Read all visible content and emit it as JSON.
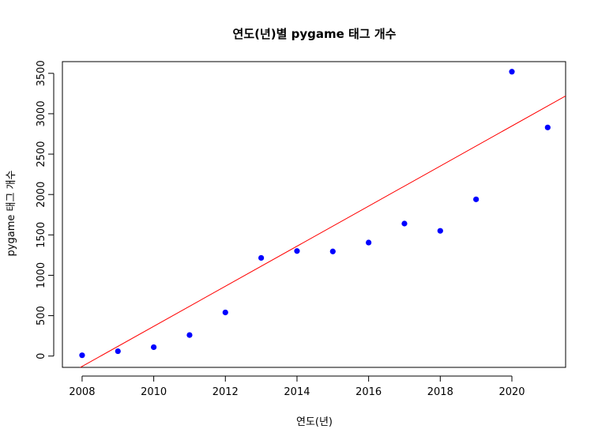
{
  "chart_data": {
    "type": "scatter",
    "title": "연도(년)별 pygame 태그 개수",
    "xlabel": "연도(년)",
    "ylabel": "pygame 태그 개수",
    "xlim": [
      2007.45,
      2021.5
    ],
    "ylim": [
      -140,
      3645
    ],
    "xticks": [
      2008,
      2010,
      2012,
      2014,
      2016,
      2018,
      2020
    ],
    "yticks": [
      0,
      500,
      1000,
      1500,
      2000,
      2500,
      3000,
      3500
    ],
    "grid": false,
    "series": [
      {
        "x": [
          2008,
          2009,
          2010,
          2011,
          2012,
          2013,
          2014,
          2015,
          2016,
          2017,
          2018,
          2019,
          2020,
          2021
        ],
        "y": [
          10,
          60,
          110,
          260,
          540,
          1215,
          1300,
          1295,
          1405,
          1640,
          1550,
          1940,
          3520,
          2830
        ],
        "color": "#0000ff"
      }
    ],
    "fit_line": {
      "type": "linear-regression",
      "color": "#ff0000",
      "slope": 248,
      "intercept": -498112
    }
  }
}
